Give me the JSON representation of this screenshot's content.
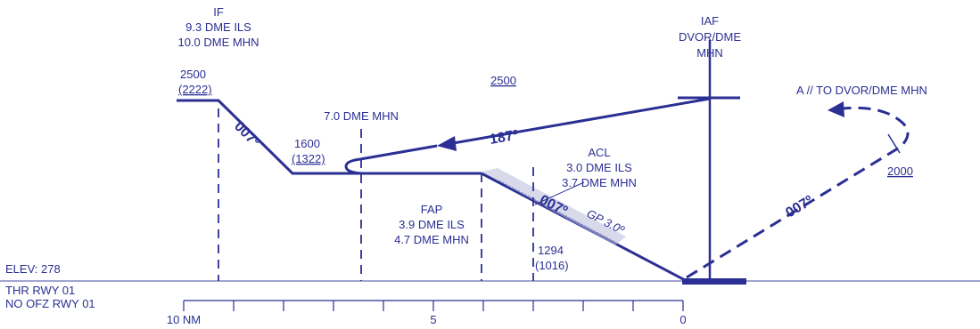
{
  "colors": {
    "ink": "#2b2f93",
    "ground": "#6a6fb3"
  },
  "fixes": {
    "if": {
      "name": "IF",
      "dme_ils": "9.3 DME ILS",
      "dme_mhn": "10.0 DME MHN"
    },
    "iaf": {
      "name": "IAF",
      "type": "DVOR/DME",
      "ident": "MHN"
    },
    "fap": {
      "name": "FAP",
      "dme_ils": "3.9 DME ILS",
      "dme_mhn": "4.7 DME MHN"
    },
    "acl": {
      "name": "ACL",
      "dme_ils": "3.0 DME ILS",
      "dme_mhn": "3.7 DME MHN"
    },
    "fix_7": {
      "label": "7.0 DME MHN"
    }
  },
  "altitudes": {
    "if_alt": "2500",
    "if_hgt": "(2222)",
    "iaf_alt": "2500",
    "turn_alt": "1600",
    "turn_hgt": "(1322)",
    "acl_alt": "1294",
    "acl_hgt": "(1016)",
    "missed_alt": "2000"
  },
  "courses": {
    "outbound": "187º",
    "inbound": "007º",
    "final": "007º",
    "missed": "007º",
    "glidepath": "GP 3.0º"
  },
  "missed_approach": {
    "text": "A // TO DVOR/DME MHN"
  },
  "threshold": {
    "elev": "ELEV: 278",
    "thr": "THR RWY 01",
    "ofz": "NO OFZ RWY 01"
  },
  "scale": {
    "left": "10 NM",
    "mid": "5",
    "right": "0"
  }
}
